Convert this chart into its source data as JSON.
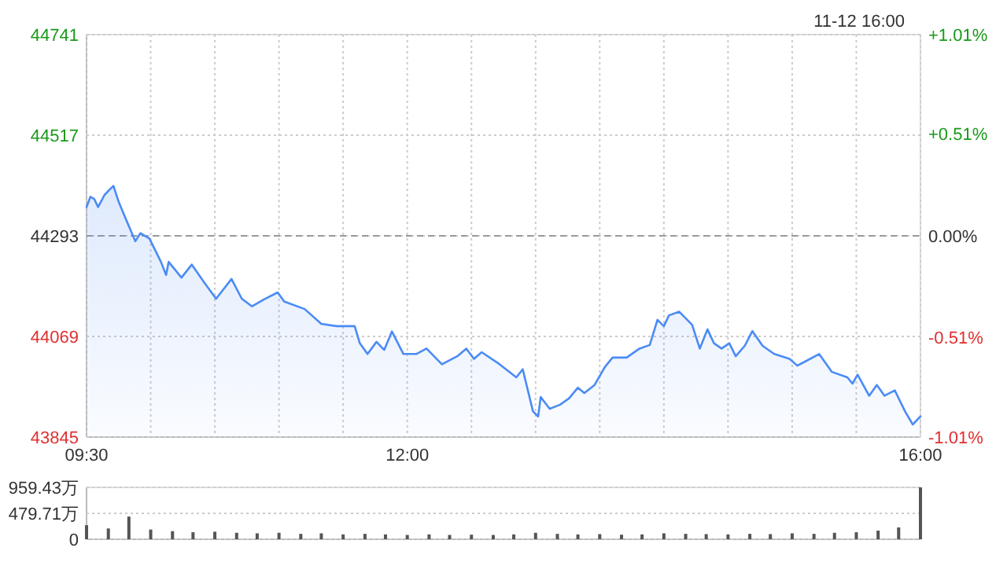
{
  "chart_data": [
    {
      "type": "area",
      "annotations": [
        "11-12 16:00"
      ],
      "x": [
        9.5,
        9.53,
        9.56,
        9.59,
        9.64,
        9.68,
        9.71,
        9.75,
        9.81,
        9.88,
        9.92,
        9.99,
        10.08,
        10.12,
        10.14,
        10.24,
        10.32,
        10.42,
        10.51,
        10.63,
        10.71,
        10.79,
        10.88,
        10.99,
        11.04,
        11.2,
        11.33,
        11.45,
        11.59,
        11.63,
        11.69,
        11.76,
        11.82,
        11.88,
        11.97,
        12.07,
        12.15,
        12.27,
        12.39,
        12.46,
        12.52,
        12.58,
        12.72,
        12.85,
        12.9,
        12.95,
        12.98,
        13.02,
        13.04,
        13.11,
        13.19,
        13.26,
        13.33,
        13.38,
        13.46,
        13.54,
        13.6,
        13.71,
        13.81,
        13.89,
        13.95,
        14.0,
        14.04,
        14.12,
        14.22,
        14.28,
        14.34,
        14.39,
        14.45,
        14.51,
        14.56,
        14.63,
        14.69,
        14.77,
        14.86,
        14.98,
        15.04,
        15.1,
        15.21,
        15.31,
        15.43,
        15.47,
        15.51,
        15.6,
        15.66,
        15.72,
        15.8,
        15.88,
        15.94,
        16.0
      ],
      "series": [
        {
          "color": "#4b8bf5",
          "values": [
            44357,
            44380,
            44375,
            44357,
            44384,
            44396,
            44404,
            44369,
            44328,
            44281,
            44299,
            44287,
            44235,
            44206,
            44235,
            44200,
            44229,
            44188,
            44153,
            44197,
            44153,
            44136,
            44151,
            44167,
            44147,
            44130,
            44097,
            44092,
            44092,
            44054,
            44030,
            44057,
            44039,
            44080,
            44030,
            44030,
            44042,
            44007,
            44025,
            44042,
            44019,
            44034,
            44007,
            43978,
            43996,
            43937,
            43902,
            43891,
            43934,
            43908,
            43917,
            43931,
            43955,
            43943,
            43961,
            44001,
            44022,
            44022,
            44042,
            44050,
            44106,
            44092,
            44116,
            44124,
            44095,
            44042,
            44085,
            44054,
            44042,
            44054,
            44025,
            44048,
            44081,
            44048,
            44030,
            44019,
            44004,
            44013,
            44030,
            43990,
            43978,
            43964,
            43984,
            43937,
            43961,
            43937,
            43949,
            43902,
            43873,
            43891
          ]
        }
      ],
      "xlim": [
        9.5,
        16
      ],
      "xticks": [
        {
          "value": 9.5,
          "label": "09:30"
        },
        {
          "value": 10,
          "label": null
        },
        {
          "value": 10.5,
          "label": null
        },
        {
          "value": 11,
          "label": null
        },
        {
          "value": 11.5,
          "label": null
        },
        {
          "value": 12,
          "label": "12:00"
        },
        {
          "value": 12.5,
          "label": null
        },
        {
          "value": 13,
          "label": null
        },
        {
          "value": 13.5,
          "label": null
        },
        {
          "value": 14,
          "label": null
        },
        {
          "value": 14.5,
          "label": null
        },
        {
          "value": 15,
          "label": null
        },
        {
          "value": 15.5,
          "label": null
        },
        {
          "value": 16,
          "label": "16:00"
        }
      ],
      "ylim": [
        43845,
        44741
      ],
      "yticks": [
        43845,
        44069,
        44293,
        44517,
        44741
      ],
      "y2lim": [
        -1.01,
        1.01
      ],
      "y2ticks": [
        {
          "value": -1.01,
          "label": "-1.01%"
        },
        {
          "value": -0.51,
          "label": "-0.51%"
        },
        {
          "value": 0,
          "label": "0.00%"
        },
        {
          "value": 0.51,
          "label": "+0.51%"
        },
        {
          "value": 1.01,
          "label": "+1.01%"
        }
      ],
      "ref_lines": [
        {
          "axis": "y",
          "value": 44293
        }
      ],
      "grid": true
    },
    {
      "type": "bar",
      "color": "#555555",
      "x": [
        9.5,
        9.67,
        9.83,
        10,
        10.17,
        10.33,
        10.5,
        10.67,
        10.83,
        11,
        11.17,
        11.33,
        11.5,
        11.67,
        11.83,
        12,
        12.17,
        12.33,
        12.5,
        12.67,
        12.83,
        13,
        13.17,
        13.33,
        13.5,
        13.67,
        13.83,
        14,
        14.17,
        14.33,
        14.5,
        14.67,
        14.83,
        15,
        15.17,
        15.33,
        15.5,
        15.67,
        15.83,
        16
      ],
      "values": [
        260,
        200,
        420,
        180,
        150,
        130,
        140,
        120,
        110,
        120,
        100,
        110,
        90,
        100,
        90,
        80,
        90,
        80,
        85,
        80,
        90,
        120,
        100,
        90,
        95,
        85,
        90,
        110,
        100,
        95,
        90,
        100,
        95,
        110,
        100,
        120,
        130,
        160,
        220,
        959.43
      ],
      "xlim": [
        9.5,
        16
      ],
      "ylim": [
        0,
        959.43
      ],
      "yticks": [
        0,
        {
          "value": 479.71,
          "label": "479.71万"
        },
        {
          "value": 959.43,
          "label": "959.43万"
        }
      ],
      "tick_labels": "y",
      "grid": "y"
    }
  ]
}
